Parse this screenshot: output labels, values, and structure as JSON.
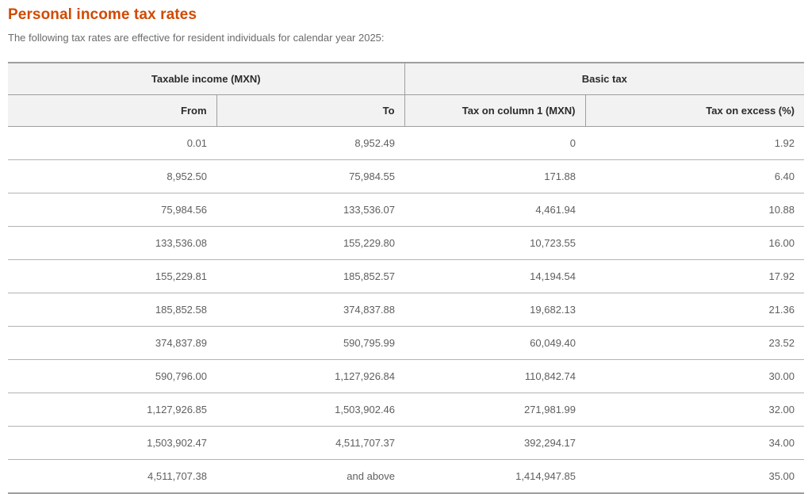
{
  "page": {
    "title": "Personal income tax rates",
    "subtitle": "The following tax rates are effective for resident individuals for calendar year 2025:",
    "accent_color": "#d04a02"
  },
  "table": {
    "group_headers": [
      {
        "label": "Taxable income (MXN)",
        "span": 2
      },
      {
        "label": "Basic tax",
        "span": 2
      }
    ],
    "columns": [
      "From",
      "To",
      "Tax on column 1 (MXN)",
      "Tax on excess (%)"
    ],
    "rows": [
      [
        "0.01",
        "8,952.49",
        "0",
        "1.92"
      ],
      [
        "8,952.50",
        "75,984.55",
        "171.88",
        "6.40"
      ],
      [
        "75,984.56",
        "133,536.07",
        "4,461.94",
        "10.88"
      ],
      [
        "133,536.08",
        "155,229.80",
        "10,723.55",
        "16.00"
      ],
      [
        "155,229.81",
        "185,852.57",
        "14,194.54",
        "17.92"
      ],
      [
        "185,852.58",
        "374,837.88",
        "19,682.13",
        "21.36"
      ],
      [
        "374,837.89",
        "590,795.99",
        "60,049.40",
        "23.52"
      ],
      [
        "590,796.00",
        "1,127,926.84",
        "110,842.74",
        "30.00"
      ],
      [
        "1,127,926.85",
        "1,503,902.46",
        "271,981.99",
        "32.00"
      ],
      [
        "1,503,902.47",
        "4,511,707.37",
        "392,294.17",
        "34.00"
      ],
      [
        "4,511,707.38",
        "and above",
        "1,414,947.85",
        "35.00"
      ]
    ],
    "column_keys": [
      "from",
      "to",
      "tax-on-column-1",
      "tax-on-excess"
    ]
  }
}
